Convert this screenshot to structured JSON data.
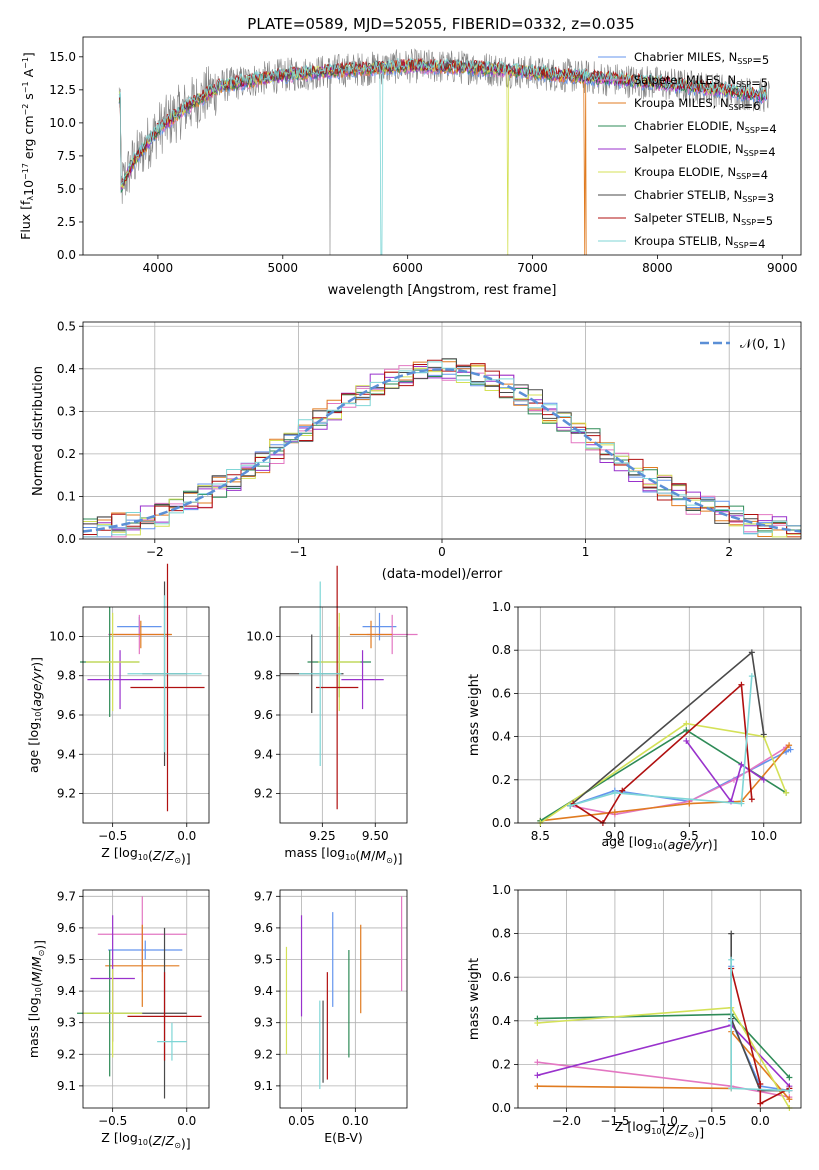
{
  "figure_title": "PLATE=0589, MJD=52055, FIBERID=0332, z=0.035",
  "series_colors": [
    "#6495ed",
    "#e377c2",
    "#e07b20",
    "#2e8b57",
    "#9932cc",
    "#d4e157",
    "#4a4a4a",
    "#b01010",
    "#7fd6d6"
  ],
  "chart_data": [
    {
      "id": "spectrum",
      "type": "line",
      "xlabel": "wavelength [Angstrom, rest frame]",
      "ylabel": "Flux [f_λ 10^-17 erg cm^-2 s^-1 A^-1]",
      "xlim": [
        3400,
        9150
      ],
      "ylim": [
        0,
        16.5
      ],
      "xticks": [
        4000,
        5000,
        6000,
        7000,
        8000,
        9000
      ],
      "yticks": [
        0.0,
        2.5,
        5.0,
        7.5,
        10.0,
        12.5,
        15.0
      ],
      "legend": [
        "Chabrier MILES, N_SSP=5",
        "Salpeter MILES, N_SSP=5",
        "Kroupa MILES, N_SSP=6",
        "Chabrier ELODIE, N_SSP=4",
        "Salpeter ELODIE, N_SSP=4",
        "Kroupa ELODIE, N_SSP=4",
        "Chabrier STELIB, N_SSP=3",
        "Salpeter STELIB, N_SSP=5",
        "Kroupa STELIB, N_SSP=4"
      ],
      "legend_loc": "right",
      "data_envelope": {
        "x": [
          3700,
          3800,
          4000,
          4200,
          4500,
          5000,
          5500,
          6000,
          6500,
          7000,
          7500,
          8000,
          8500,
          8900
        ],
        "y": [
          5.0,
          7.0,
          9.5,
          11.0,
          12.8,
          13.6,
          14.0,
          14.3,
          14.2,
          13.8,
          13.4,
          13.0,
          12.5,
          12.0
        ]
      },
      "dropouts": [
        {
          "x": 5790,
          "model": "Kroupa STELIB"
        },
        {
          "x": 6800,
          "model": "Kroupa ELODIE"
        },
        {
          "x": 7420,
          "model": "Kroupa MILES"
        },
        {
          "x": 5380,
          "model": "data"
        }
      ]
    },
    {
      "id": "residuals",
      "type": "line",
      "xlabel": "(data-model)/error",
      "ylabel": "Normed distribution",
      "xlim": [
        -2.5,
        2.5
      ],
      "ylim": [
        0,
        0.51
      ],
      "xticks": [
        -2,
        -1,
        0,
        1,
        2
      ],
      "yticks": [
        0.0,
        0.1,
        0.2,
        0.3,
        0.4,
        0.5
      ],
      "legend": [
        "𝒩(0, 1)"
      ],
      "legend_loc": "upper right",
      "bin_width": 0.1
    },
    {
      "id": "age_vs_Z",
      "type": "scatter",
      "xlabel": "Z [log10(Z/Z_sun)]",
      "ylabel": "age [log10(age/yr)]",
      "xlim": [
        -0.7,
        0.15
      ],
      "ylim": [
        9.05,
        10.15
      ],
      "xticks": [
        -0.5,
        0.0
      ],
      "yticks": [
        9.2,
        9.4,
        9.6,
        9.8,
        10.0
      ],
      "points": [
        {
          "x": -0.32,
          "y": 10.05,
          "xerr": 0.15,
          "yerr": 0.05
        },
        {
          "x": -0.32,
          "y": 10.01,
          "xerr": 0.21,
          "yerr": 0.1
        },
        {
          "x": -0.31,
          "y": 10.01,
          "xerr": 0.21,
          "yerr": 0.07
        },
        {
          "x": -0.52,
          "y": 9.87,
          "xerr": 0.2,
          "yerr": 0.28
        },
        {
          "x": -0.45,
          "y": 9.78,
          "xerr": 0.22,
          "yerr": 0.15
        },
        {
          "x": -0.5,
          "y": 9.87,
          "xerr": 0.18,
          "yerr": 0.25
        },
        {
          "x": -0.15,
          "y": 9.81,
          "xerr": 0.15,
          "yerr": 0.47
        },
        {
          "x": -0.13,
          "y": 9.74,
          "xerr": 0.25,
          "yerr": 0.63
        },
        {
          "x": -0.15,
          "y": 9.81,
          "xerr": 0.25,
          "yerr": 0.4
        }
      ]
    },
    {
      "id": "age_vs_mass",
      "type": "scatter",
      "xlabel": "mass [log10(M/M_sun)]",
      "ylabel": "",
      "xlim": [
        9.05,
        9.65
      ],
      "ylim": [
        9.05,
        10.15
      ],
      "xticks": [
        9.25,
        9.5
      ],
      "yticks": [
        9.2,
        9.4,
        9.6,
        9.8,
        10.0
      ],
      "points": [
        {
          "x": 9.52,
          "y": 10.05,
          "xerr": 0.08,
          "yerr": 0.07
        },
        {
          "x": 9.58,
          "y": 10.01,
          "xerr": 0.12,
          "yerr": 0.1
        },
        {
          "x": 9.48,
          "y": 10.01,
          "xerr": 0.1,
          "yerr": 0.07
        },
        {
          "x": 9.33,
          "y": 9.87,
          "xerr": 0.15,
          "yerr": 0.18
        },
        {
          "x": 9.44,
          "y": 9.78,
          "xerr": 0.1,
          "yerr": 0.15
        },
        {
          "x": 9.33,
          "y": 9.87,
          "xerr": 0.1,
          "yerr": 0.25
        },
        {
          "x": 9.2,
          "y": 9.81,
          "xerr": 0.15,
          "yerr": 0.2
        },
        {
          "x": 9.32,
          "y": 9.74,
          "xerr": 0.1,
          "yerr": 0.62
        },
        {
          "x": 9.24,
          "y": 9.81,
          "xerr": 0.1,
          "yerr": 0.47
        }
      ]
    },
    {
      "id": "massweight_vs_age",
      "type": "line",
      "xlabel": "age [log10(age/yr)]",
      "ylabel": "mass weight",
      "xlim": [
        8.35,
        10.25
      ],
      "ylim": [
        0,
        1.0
      ],
      "xticks": [
        8.5,
        9.0,
        9.5,
        10.0
      ],
      "yticks": [
        0.0,
        0.2,
        0.4,
        0.6,
        0.8,
        1.0
      ],
      "series": [
        {
          "name": "Chabrier MILES",
          "x": [
            8.7,
            9.0,
            9.5,
            10.15,
            10.18
          ],
          "y": [
            0.08,
            0.15,
            0.1,
            0.33,
            0.34
          ]
        },
        {
          "name": "Salpeter MILES",
          "x": [
            8.7,
            9.0,
            9.5,
            9.8,
            10.15
          ],
          "y": [
            0.08,
            0.04,
            0.1,
            0.2,
            0.35
          ]
        },
        {
          "name": "Kroupa MILES",
          "x": [
            8.5,
            9.0,
            9.5,
            9.85,
            10.17
          ],
          "y": [
            0.01,
            0.05,
            0.09,
            0.1,
            0.36
          ]
        },
        {
          "name": "Chabrier ELODIE",
          "x": [
            8.5,
            9.48,
            10.15
          ],
          "y": [
            0.01,
            0.43,
            0.14
          ]
        },
        {
          "name": "Salpeter ELODIE",
          "x": [
            9.48,
            9.78,
            9.85,
            10.0
          ],
          "y": [
            0.38,
            0.1,
            0.27,
            0.2
          ]
        },
        {
          "name": "Kroupa ELODIE",
          "x": [
            8.5,
            9.48,
            10.0,
            10.15
          ],
          "y": [
            0.0,
            0.46,
            0.4,
            0.14
          ]
        },
        {
          "name": "Chabrier STELIB",
          "x": [
            8.7,
            9.92,
            10.0
          ],
          "y": [
            0.08,
            0.79,
            0.41
          ]
        },
        {
          "name": "Salpeter STELIB",
          "x": [
            8.72,
            8.92,
            9.05,
            9.85,
            9.92
          ],
          "y": [
            0.09,
            0.0,
            0.15,
            0.64,
            0.11
          ]
        },
        {
          "name": "Kroupa STELIB",
          "x": [
            8.7,
            9.0,
            9.85,
            9.92
          ],
          "y": [
            0.08,
            0.14,
            0.09,
            0.68
          ]
        }
      ]
    },
    {
      "id": "mass_vs_Z",
      "type": "scatter",
      "xlabel": "Z [log10(Z/Z_sun)]",
      "ylabel": "mass [log10(M/M_sun)]",
      "xlim": [
        -0.7,
        0.15
      ],
      "ylim": [
        9.03,
        9.72
      ],
      "xticks": [
        -0.5,
        0.0
      ],
      "yticks": [
        9.1,
        9.2,
        9.3,
        9.4,
        9.5,
        9.6,
        9.7
      ],
      "points": [
        {
          "x": -0.28,
          "y": 9.53,
          "xerr": 0.25,
          "yerr": 0.03
        },
        {
          "x": -0.3,
          "y": 9.58,
          "xerr": 0.3,
          "yerr": 0.12
        },
        {
          "x": -0.3,
          "y": 9.48,
          "xerr": 0.25,
          "yerr": 0.13
        },
        {
          "x": -0.52,
          "y": 9.33,
          "xerr": 0.22,
          "yerr": 0.2
        },
        {
          "x": -0.5,
          "y": 9.44,
          "xerr": 0.15,
          "yerr": 0.2
        },
        {
          "x": -0.5,
          "y": 9.33,
          "xerr": 0.2,
          "yerr": 0.14
        },
        {
          "x": -0.15,
          "y": 9.33,
          "xerr": 0.15,
          "yerr": 0.27
        },
        {
          "x": -0.15,
          "y": 9.32,
          "xerr": 0.25,
          "yerr": 0.14
        },
        {
          "x": -0.1,
          "y": 9.24,
          "xerr": 0.1,
          "yerr": 0.06
        }
      ]
    },
    {
      "id": "mass_vs_EBV",
      "type": "scatter",
      "xlabel": "E(B-V)",
      "ylabel": "",
      "xlim": [
        0.03,
        0.148
      ],
      "ylim": [
        9.03,
        9.72
      ],
      "xticks": [
        0.05,
        0.1
      ],
      "yticks": [
        9.1,
        9.2,
        9.3,
        9.4,
        9.5,
        9.6,
        9.7
      ],
      "points": [
        {
          "x": 0.079,
          "y": 9.5,
          "xerr": 0.0,
          "yerr": 0.15
        },
        {
          "x": 0.143,
          "y": 9.55,
          "xerr": 0.0,
          "yerr": 0.15
        },
        {
          "x": 0.105,
          "y": 9.47,
          "xerr": 0.0,
          "yerr": 0.14
        },
        {
          "x": 0.094,
          "y": 9.36,
          "xerr": 0.0,
          "yerr": 0.17
        },
        {
          "x": 0.05,
          "y": 9.48,
          "xerr": 0.0,
          "yerr": 0.16
        },
        {
          "x": 0.036,
          "y": 9.37,
          "xerr": 0.0,
          "yerr": 0.17
        },
        {
          "x": 0.07,
          "y": 9.24,
          "xerr": 0.0,
          "yerr": 0.13
        },
        {
          "x": 0.074,
          "y": 9.29,
          "xerr": 0.0,
          "yerr": 0.17
        },
        {
          "x": 0.067,
          "y": 9.23,
          "xerr": 0.0,
          "yerr": 0.14
        }
      ]
    },
    {
      "id": "massweight_vs_Z",
      "type": "line",
      "xlabel": "Z [log10(Z/Z_sun)]",
      "ylabel": "mass weight",
      "xlim": [
        -2.5,
        0.42
      ],
      "ylim": [
        0,
        1.0
      ],
      "xticks": [
        -2.0,
        -1.5,
        -1.0,
        -0.5,
        0.0
      ],
      "yticks": [
        0.0,
        0.2,
        0.4,
        0.6,
        0.8,
        1.0
      ],
      "xticklabels": [
        "−2.0",
        "−1.5",
        "−1.0",
        "−0.5",
        "0.0"
      ],
      "series": [
        {
          "name": "Chabrier MILES",
          "x": [
            -0.3,
            -0.3,
            0.0,
            0.3
          ],
          "y": [
            0.65,
            0.4,
            0.1,
            0.08
          ]
        },
        {
          "name": "Salpeter MILES",
          "x": [
            -2.3,
            -0.3,
            0.3
          ],
          "y": [
            0.21,
            0.1,
            0.05
          ]
        },
        {
          "name": "Kroupa MILES",
          "x": [
            -2.3,
            -0.3,
            -0.3,
            0.3
          ],
          "y": [
            0.1,
            0.09,
            0.35,
            0.04
          ]
        },
        {
          "name": "Chabrier ELODIE",
          "x": [
            -2.3,
            -0.3,
            0.3
          ],
          "y": [
            0.41,
            0.43,
            0.14
          ]
        },
        {
          "name": "Salpeter ELODIE",
          "x": [
            -2.3,
            -0.3,
            0.3
          ],
          "y": [
            0.15,
            0.38,
            0.1
          ]
        },
        {
          "name": "Kroupa ELODIE",
          "x": [
            -2.3,
            -0.3,
            0.3
          ],
          "y": [
            0.39,
            0.46,
            0.0
          ]
        },
        {
          "name": "Chabrier STELIB",
          "x": [
            -0.3,
            -0.3,
            0.0,
            0.3
          ],
          "y": [
            0.8,
            0.41,
            0.08,
            0.08
          ]
        },
        {
          "name": "Salpeter STELIB",
          "x": [
            -0.3,
            0.0,
            0.0,
            0.3
          ],
          "y": [
            0.64,
            0.11,
            0.02,
            0.09
          ]
        },
        {
          "name": "Kroupa STELIB",
          "x": [
            -0.3,
            -0.3,
            0.3
          ],
          "y": [
            0.68,
            0.09,
            0.08
          ]
        }
      ]
    }
  ]
}
